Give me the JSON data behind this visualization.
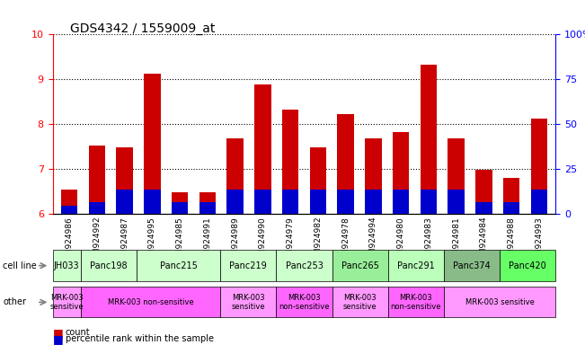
{
  "title": "GDS4342 / 1559009_at",
  "samples": [
    "GSM924986",
    "GSM924992",
    "GSM924987",
    "GSM924995",
    "GSM924985",
    "GSM924991",
    "GSM924989",
    "GSM924990",
    "GSM924979",
    "GSM924982",
    "GSM924978",
    "GSM924994",
    "GSM924980",
    "GSM924983",
    "GSM924981",
    "GSM924984",
    "GSM924988",
    "GSM924993"
  ],
  "count_values": [
    6.55,
    7.52,
    7.49,
    9.12,
    6.49,
    6.49,
    7.68,
    8.88,
    8.32,
    7.49,
    8.22,
    7.68,
    7.82,
    9.33,
    7.68,
    6.99,
    6.8,
    8.12
  ],
  "percentile_values": [
    6.18,
    6.27,
    6.55,
    6.55,
    6.27,
    6.27,
    6.55,
    6.55,
    6.55,
    6.55,
    6.55,
    6.55,
    6.55,
    6.55,
    6.55,
    6.27,
    6.27,
    6.55
  ],
  "ylim": [
    6.0,
    10.0
  ],
  "yticks_left": [
    6,
    7,
    8,
    9,
    10
  ],
  "yticks_right": [
    0,
    25,
    50,
    75,
    100
  ],
  "bar_color": "#cc0000",
  "percentile_color": "#0000cc",
  "background_color": "#ffffff",
  "cell_lines_data": [
    [
      "JH033",
      0,
      1,
      "#ccffcc"
    ],
    [
      "Panc198",
      1,
      3,
      "#ccffcc"
    ],
    [
      "Panc215",
      3,
      6,
      "#ccffcc"
    ],
    [
      "Panc219",
      6,
      8,
      "#ccffcc"
    ],
    [
      "Panc253",
      8,
      10,
      "#ccffcc"
    ],
    [
      "Panc265",
      10,
      12,
      "#99ee99"
    ],
    [
      "Panc291",
      12,
      14,
      "#bbffbb"
    ],
    [
      "Panc374",
      14,
      16,
      "#88bb88"
    ],
    [
      "Panc420",
      16,
      18,
      "#66ff66"
    ]
  ],
  "other_data": [
    [
      "MRK-003\nsensitive",
      0,
      1,
      "#ff99ff"
    ],
    [
      "MRK-003 non-sensitive",
      1,
      6,
      "#ff66ff"
    ],
    [
      "MRK-003\nsensitive",
      6,
      8,
      "#ff99ff"
    ],
    [
      "MRK-003\nnon-sensitive",
      8,
      10,
      "#ff66ff"
    ],
    [
      "MRK-003\nsensitive",
      10,
      12,
      "#ff99ff"
    ],
    [
      "MRK-003\nnon-sensitive",
      12,
      14,
      "#ff66ff"
    ],
    [
      "MRK-003 sensitive",
      14,
      18,
      "#ff99ff"
    ]
  ]
}
